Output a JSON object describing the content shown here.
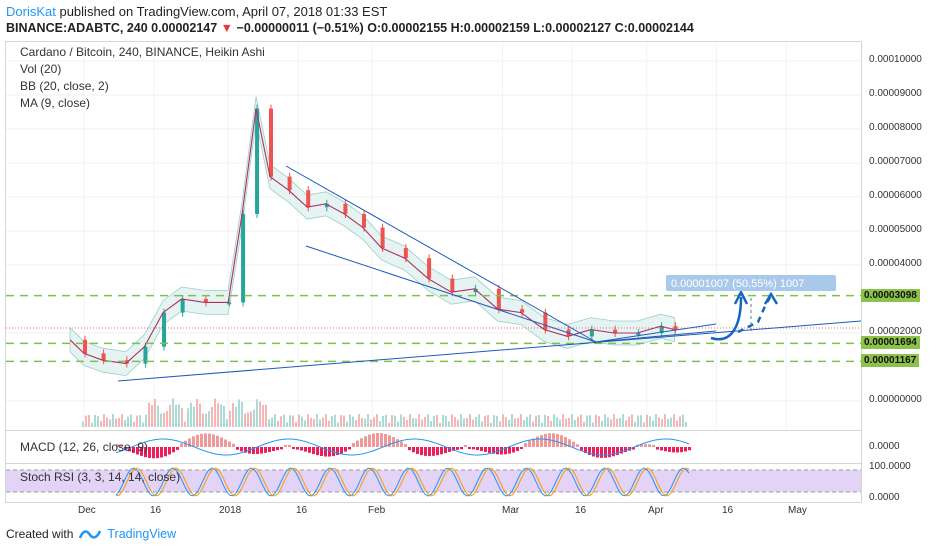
{
  "header": {
    "author": "DorisKat",
    "published": " published on TradingView.com, April 07, 2018 01:33 EST",
    "symbol_line_a": "BINANCE:ADABTC, 240  0.00002147 ",
    "arrow": "▼",
    "change": " −0.00000011 (−0.51%)",
    "ohlc": " O:0.00002155 H:0.00002159 L:0.00002127 C:0.00002144"
  },
  "legend": {
    "title": "Cardano / Bitcoin, 240, BINANCE, Heikin Ashi",
    "vol": "Vol (20)",
    "bb": "BB (20, close, 2)",
    "ma": "MA (9, close)",
    "macd": "MACD (12, 26, close, 9)",
    "stoch": "Stoch RSI (3, 3, 14, 14, close)"
  },
  "yaxis": {
    "labels": [
      "0.00010000",
      "0.00009000",
      "0.00008000",
      "0.00007000",
      "0.00006000",
      "0.00005000",
      "0.00004000",
      "0.00002000",
      "0.00000000"
    ],
    "tag_1": "0.00003098",
    "tag_2": "0.00001694",
    "tag_3": "0.00001167",
    "macd_label": "0.0000",
    "stoch_top": "100.0000",
    "stoch_bottom": "0.0000"
  },
  "xaxis": {
    "labels": [
      "Dec",
      "16",
      "2018",
      "16",
      "Feb",
      "Mar",
      "16",
      "Apr",
      "16",
      "May"
    ]
  },
  "measure_label": "0.00001007 (50.55%) 1007",
  "footer": {
    "created": "Created with",
    "brand": "TradingView"
  },
  "colors": {
    "up": "#26a69a",
    "down": "#ef5350",
    "bb_fill": "#e6f3f3",
    "trend": "#1e5bb8",
    "support": "#7cc24f",
    "stoch_band": "#e3d3f7",
    "measure_bg": "#a9c9ea"
  },
  "chart_data": {
    "type": "line",
    "title": "Cardano / Bitcoin, 240, BINANCE, Heikin Ashi",
    "xlabel": "",
    "ylabel": "",
    "x": [
      "2017-11-28",
      "2017-12-01",
      "2017-12-05",
      "2017-12-10",
      "2017-12-14",
      "2017-12-18",
      "2017-12-22",
      "2017-12-27",
      "2018-01-01",
      "2018-01-04",
      "2018-01-07",
      "2018-01-10",
      "2018-01-14",
      "2018-01-18",
      "2018-01-22",
      "2018-01-26",
      "2018-01-30",
      "2018-02-03",
      "2018-02-08",
      "2018-02-13",
      "2018-02-18",
      "2018-02-23",
      "2018-02-28",
      "2018-03-05",
      "2018-03-10",
      "2018-03-15",
      "2018-03-20",
      "2018-03-25",
      "2018-03-30",
      "2018-04-04",
      "2018-04-07"
    ],
    "series": [
      {
        "values": [
          1.8e-05,
          1.4e-05,
          1.2e-05,
          1.1e-05,
          1.6e-05,
          2.6e-05,
          3e-05,
          2.9e-05,
          2.9e-05,
          5.5e-05,
          8.6e-05,
          6.6e-05,
          6.2e-05,
          5.7e-05,
          5.8e-05,
          5.5e-05,
          5.1e-05,
          4.5e-05,
          4.2e-05,
          3.6e-05,
          3.2e-05,
          3.3e-05,
          2.7e-05,
          2.6e-05,
          2.1e-05,
          1.9e-05,
          2.1e-05,
          2e-05,
          2e-05,
          2.2e-05,
          2.1e-05
        ]
      }
    ],
    "ylim": [
      0.0,
      0.000105
    ],
    "y_ticks": [
      0.0001,
      9e-05,
      8e-05,
      7e-05,
      6e-05,
      5e-05,
      4e-05,
      2e-05,
      0.0
    ],
    "horizontal_levels": [
      3.098e-05,
      1.694e-05,
      1.167e-05
    ],
    "last_price": 2.147e-05,
    "grid": true
  }
}
